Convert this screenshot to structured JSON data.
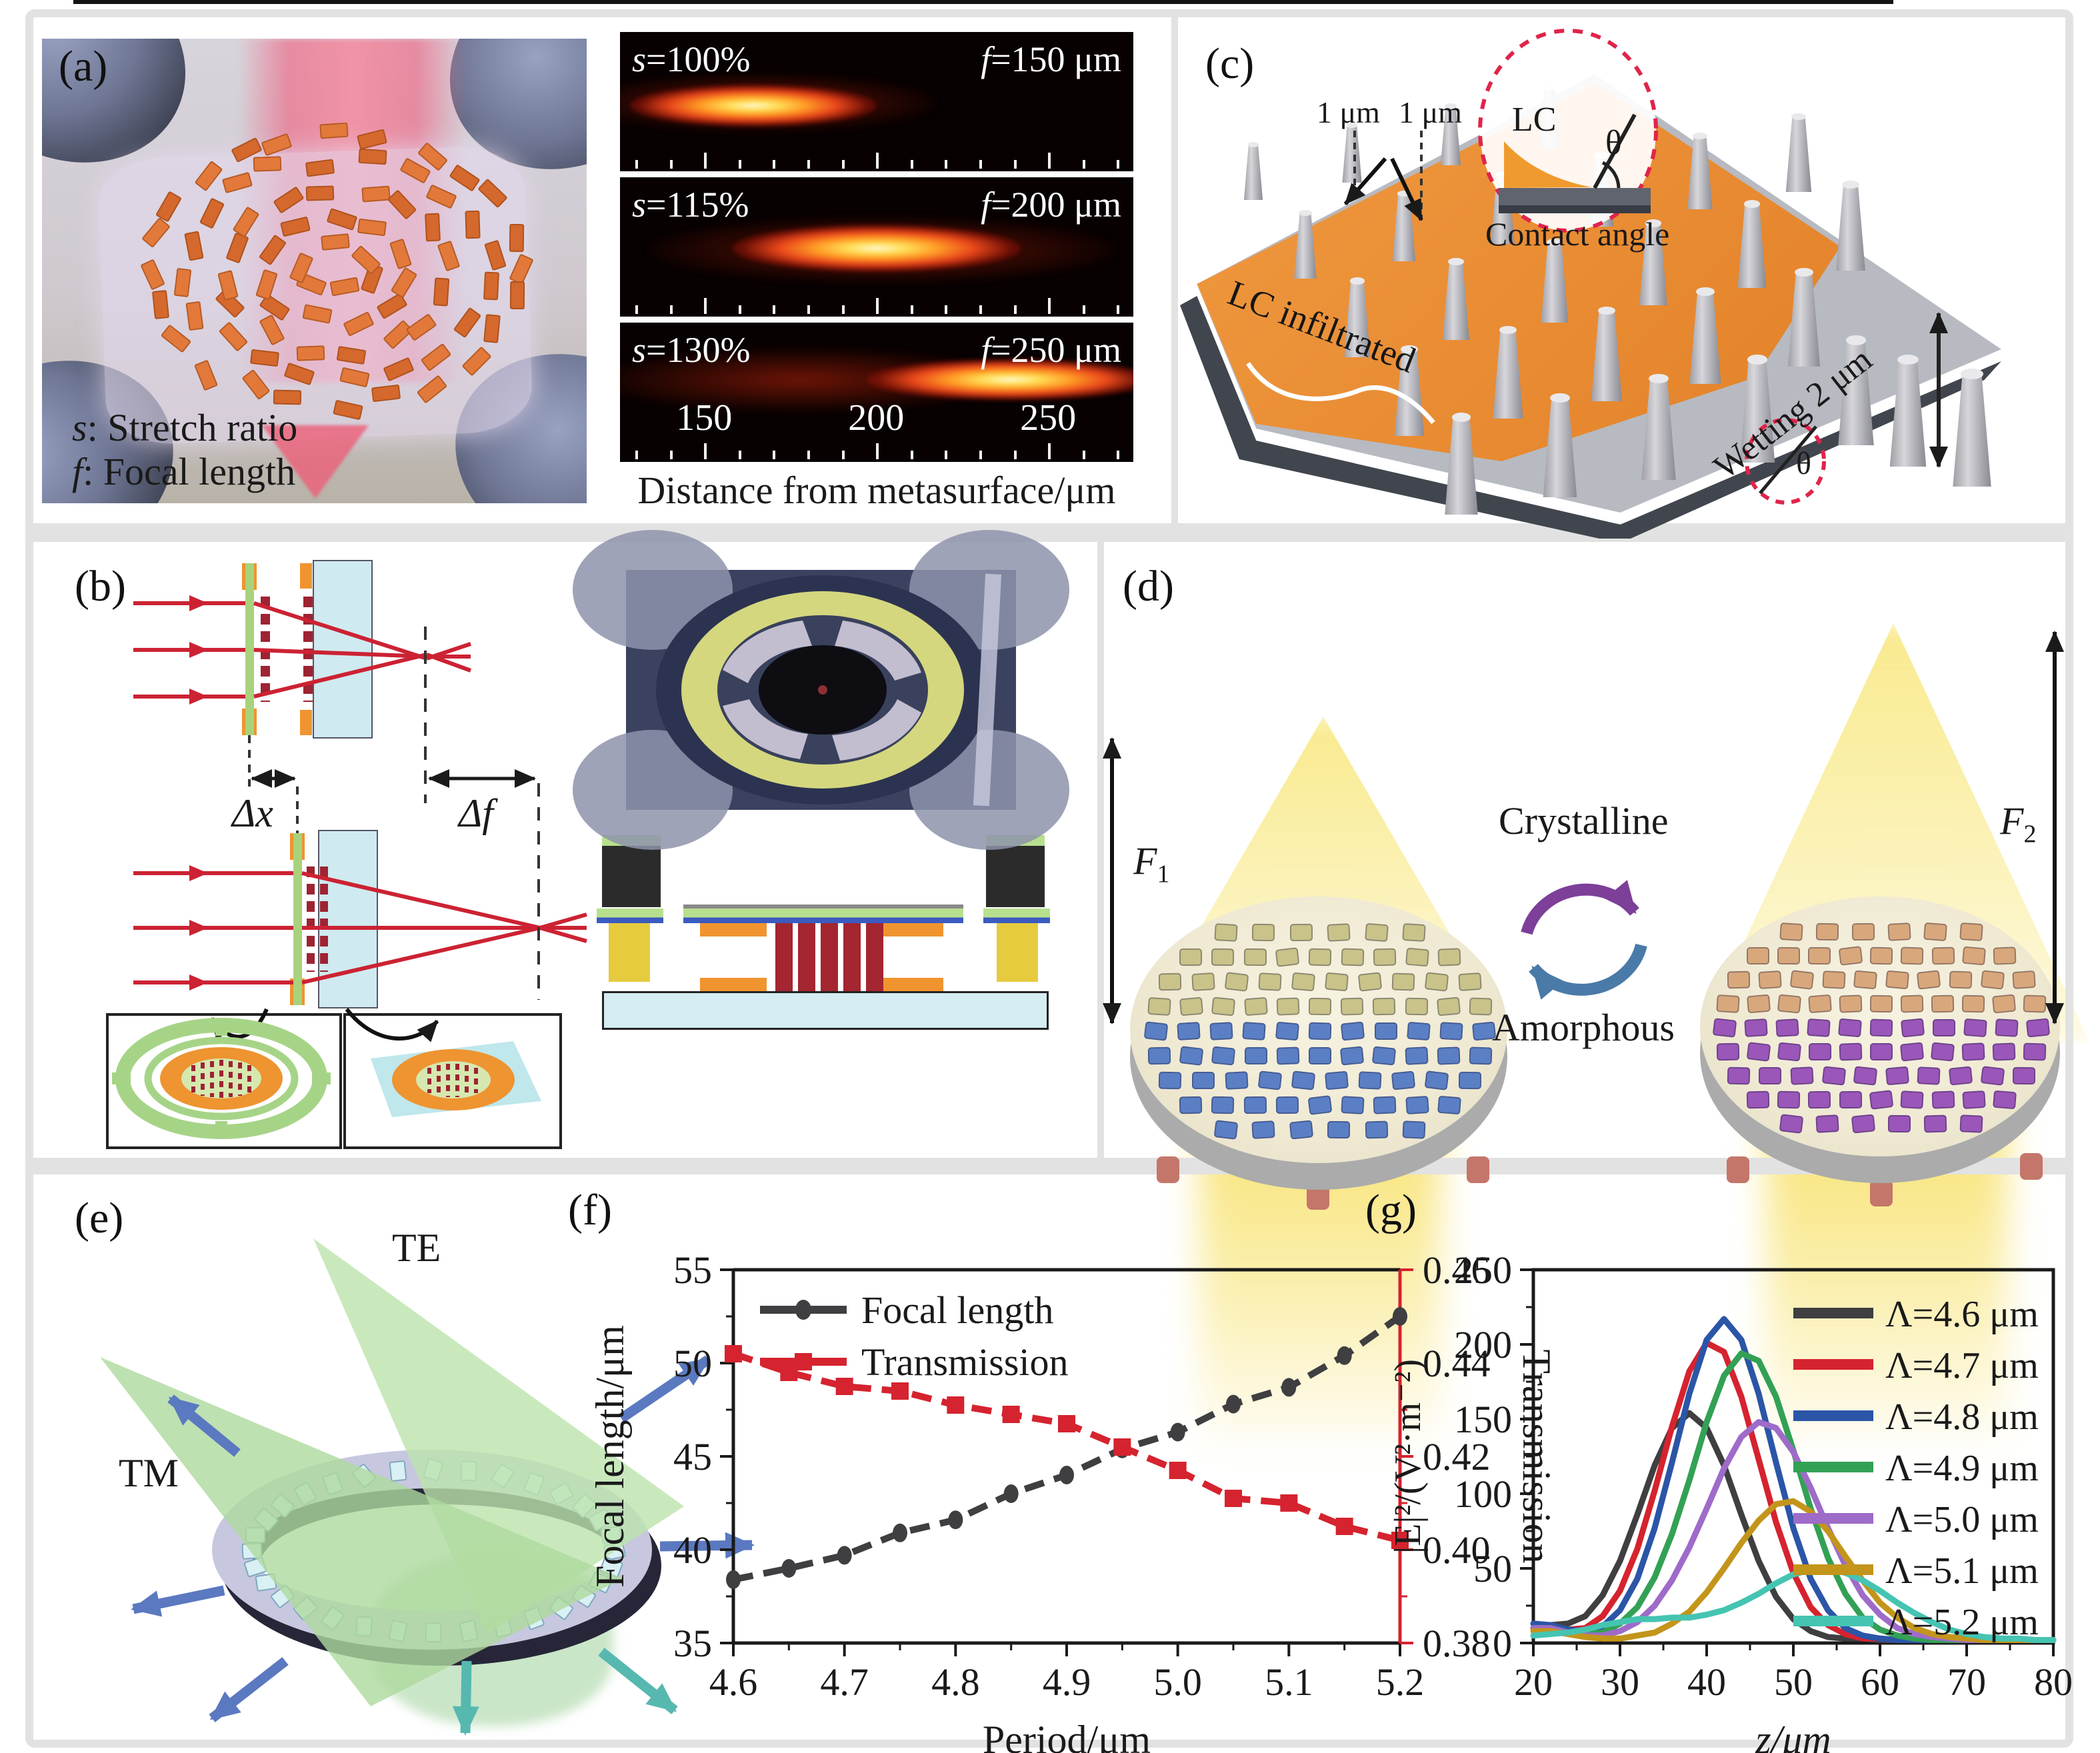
{
  "panels": {
    "a": {
      "label": "(a)",
      "legend_s": {
        "sym": "s",
        "rest": ": Stretch ratio"
      },
      "legend_f": {
        "sym": "f",
        "rest": ": Focal length"
      },
      "strips": [
        {
          "sym": "s",
          "eq": "=100%",
          "fsym": "f",
          "feq": "=150 μm"
        },
        {
          "sym": "s",
          "eq": "=115%",
          "fsym": "f",
          "feq": "=200 μm"
        },
        {
          "sym": "s",
          "eq": "=130%",
          "fsym": "f",
          "feq": "=250 μm"
        }
      ],
      "axis_ticks": [
        "150",
        "200",
        "250"
      ],
      "xlabel": "Distance from metasurface/μm"
    },
    "b": {
      "label": "(b)",
      "dx": "Δx",
      "df": "Δf"
    },
    "c": {
      "label": "(c)",
      "gap_left": "1 μm",
      "gap_right": "1 μm",
      "lc": "LC",
      "theta": "θ",
      "contact": "Contact angle",
      "infiltrated": "LC infiltrated",
      "wetting": "Wetting",
      "two_um": "2 μm",
      "theta2": "θ"
    },
    "d": {
      "label": "(d)",
      "crystalline": "Crystalline",
      "amorphous": "Amorphous",
      "f1": {
        "base": "F",
        "sub": "1"
      },
      "f2": {
        "base": "F",
        "sub": "2"
      }
    },
    "e": {
      "label": "(e)",
      "te": "TE",
      "tm": "TM"
    },
    "f": {
      "label": "(f)"
    },
    "g": {
      "label": "(g)"
    }
  },
  "colors": {
    "accent_red": "#d5232f",
    "axis_black": "#1a1a1a",
    "series_g": [
      "#3f3f41",
      "#d5232f",
      "#2b55a7",
      "#33a155",
      "#9e6bc9",
      "#c3951b",
      "#45c4b2"
    ]
  },
  "chart_data": [
    {
      "id": "focal-transmission",
      "type": "line",
      "x": [
        4.6,
        4.65,
        4.7,
        4.75,
        4.8,
        4.85,
        4.9,
        4.95,
        5.0,
        5.05,
        5.1,
        5.15,
        5.2
      ],
      "series": [
        {
          "name": "Focal length",
          "axis": "left",
          "color": "#3f3f41",
          "marker": "circle",
          "values": [
            38.4,
            39.0,
            39.7,
            40.9,
            41.6,
            43.0,
            44.0,
            45.4,
            46.3,
            47.8,
            48.7,
            50.4,
            52.5
          ]
        },
        {
          "name": "Transmission",
          "axis": "right",
          "color": "#d5232f",
          "marker": "square",
          "values": [
            0.442,
            0.438,
            0.435,
            0.434,
            0.431,
            0.429,
            0.427,
            0.422,
            0.417,
            0.411,
            0.41,
            0.405,
            0.402
          ]
        }
      ],
      "xlabel": "Period/μm",
      "ylabel_left": "Focal length/μm",
      "ylabel_right": "Transmission",
      "xlim": [
        4.6,
        5.2
      ],
      "ylim_left": [
        35,
        55
      ],
      "ylim_right": [
        0.38,
        0.46
      ],
      "xticks": [
        "4.6",
        "4.7",
        "4.8",
        "4.9",
        "5.0",
        "5.1",
        "5.2"
      ],
      "yticks_left": [
        "35",
        "40",
        "45",
        "50",
        "55"
      ],
      "yticks_right": [
        "0.38",
        "0.40",
        "0.42",
        "0.44",
        "0.46"
      ],
      "legend_position": "top-left",
      "grid": false
    },
    {
      "id": "field-intensity",
      "type": "line",
      "x": [
        20,
        22,
        24,
        26,
        28,
        30,
        32,
        34,
        36,
        38,
        40,
        42,
        44,
        46,
        48,
        50,
        52,
        54,
        56,
        58,
        60,
        62,
        64,
        66,
        68,
        70,
        72,
        74,
        76,
        78,
        80
      ],
      "series": [
        {
          "name": "Λ=4.6 μm",
          "color": "#3f3f41",
          "values": [
            10,
            12,
            13,
            18,
            32,
            55,
            86,
            119,
            144,
            154,
            144,
            119,
            86,
            55,
            31,
            16,
            8,
            4,
            3,
            3,
            2,
            2,
            2,
            2,
            2,
            2,
            2,
            2,
            2,
            2,
            2
          ]
        },
        {
          "name": "Λ=4.7 μm",
          "color": "#d5232f",
          "values": [
            10,
            10,
            9,
            10,
            18,
            35,
            63,
            102,
            145,
            182,
            201,
            195,
            165,
            123,
            81,
            47,
            24,
            12,
            6,
            3,
            3,
            2,
            2,
            2,
            2,
            2,
            2,
            2,
            2,
            2,
            2
          ]
        },
        {
          "name": "Λ=4.8 μm",
          "color": "#2b55a7",
          "values": [
            13,
            12,
            9,
            8,
            11,
            22,
            43,
            77,
            121,
            167,
            203,
            217,
            203,
            167,
            121,
            77,
            43,
            22,
            10,
            5,
            3,
            2,
            2,
            2,
            2,
            2,
            2,
            2,
            2,
            2,
            2
          ]
        },
        {
          "name": "Λ=4.9 μm",
          "color": "#33a155",
          "values": [
            10,
            10,
            7,
            6,
            7,
            13,
            24,
            44,
            73,
            109,
            148,
            179,
            194,
            189,
            165,
            129,
            90,
            57,
            33,
            17,
            9,
            5,
            3,
            2,
            2,
            2,
            2,
            2,
            2,
            2,
            2
          ]
        },
        {
          "name": "Λ=5.0 μm",
          "color": "#9e6bc9",
          "values": [
            10,
            10,
            7,
            5,
            5,
            8,
            14,
            25,
            42,
            64,
            90,
            117,
            138,
            148,
            144,
            128,
            104,
            77,
            52,
            32,
            19,
            10,
            6,
            4,
            3,
            2,
            2,
            2,
            2,
            2,
            2
          ]
        },
        {
          "name": "Λ=5.1 μm",
          "color": "#c3951b",
          "values": [
            8,
            8,
            6,
            4,
            3,
            3,
            5,
            7,
            13,
            21,
            34,
            50,
            67,
            82,
            93,
            95,
            88,
            75,
            58,
            42,
            27,
            17,
            10,
            6,
            4,
            3,
            2,
            2,
            2,
            2,
            2
          ]
        },
        {
          "name": "Λ=5.2 μm",
          "color": "#45c4b2",
          "values": [
            5,
            6,
            7,
            9,
            12,
            14,
            16,
            16,
            17,
            17,
            19,
            22,
            27,
            33,
            40,
            46,
            49,
            50,
            47,
            42,
            35,
            27,
            20,
            14,
            9,
            6,
            4,
            3,
            3,
            2,
            2
          ]
        }
      ],
      "xlabel": "z/μm",
      "ylabel": "|E|²/(V²·m⁻²)",
      "xlim": [
        20,
        80
      ],
      "ylim": [
        0,
        250
      ],
      "xticks": [
        "20",
        "30",
        "40",
        "50",
        "60",
        "70",
        "80"
      ],
      "yticks": [
        "0",
        "50",
        "100",
        "150",
        "200",
        "250"
      ],
      "legend_position": "top-right",
      "grid": false
    }
  ]
}
